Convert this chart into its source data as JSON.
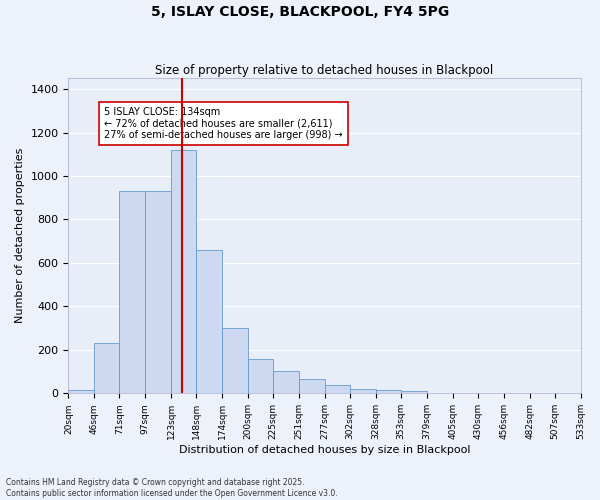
{
  "title": "5, ISLAY CLOSE, BLACKPOOL, FY4 5PG",
  "subtitle": "Size of property relative to detached houses in Blackpool",
  "xlabel": "Distribution of detached houses by size in Blackpool",
  "ylabel": "Number of detached properties",
  "bar_color": "#ccd9f0",
  "bar_edge_color": "#6699cc",
  "background_color": "#e8eef8",
  "grid_color": "#ffffff",
  "vline_color": "#cc0000",
  "vline_x": 134,
  "annotation_text": "5 ISLAY CLOSE: 134sqm\n← 72% of detached houses are smaller (2,611)\n27% of semi-detached houses are larger (998) →",
  "annotation_box_color": "#ffffff",
  "annotation_box_edge": "#cc0000",
  "footer": "Contains HM Land Registry data © Crown copyright and database right 2025.\nContains public sector information licensed under the Open Government Licence v3.0.",
  "bin_edges": [
    20,
    46,
    71,
    97,
    123,
    148,
    174,
    200,
    225,
    251,
    277,
    302,
    328,
    353,
    379,
    405,
    430,
    456,
    482,
    507,
    533
  ],
  "bin_labels": [
    "20sqm",
    "46sqm",
    "71sqm",
    "97sqm",
    "123sqm",
    "148sqm",
    "174sqm",
    "200sqm",
    "225sqm",
    "251sqm",
    "277sqm",
    "302sqm",
    "328sqm",
    "353sqm",
    "379sqm",
    "405sqm",
    "430sqm",
    "456sqm",
    "482sqm",
    "507sqm",
    "533sqm"
  ],
  "bar_heights": [
    15,
    230,
    930,
    930,
    1120,
    660,
    300,
    160,
    105,
    68,
    37,
    22,
    15,
    10,
    0,
    0,
    0,
    0,
    0,
    0
  ],
  "ylim": [
    0,
    1450
  ],
  "yticks": [
    0,
    200,
    400,
    600,
    800,
    1000,
    1200,
    1400
  ],
  "fig_width": 6.0,
  "fig_height": 5.0,
  "fig_dpi": 100
}
